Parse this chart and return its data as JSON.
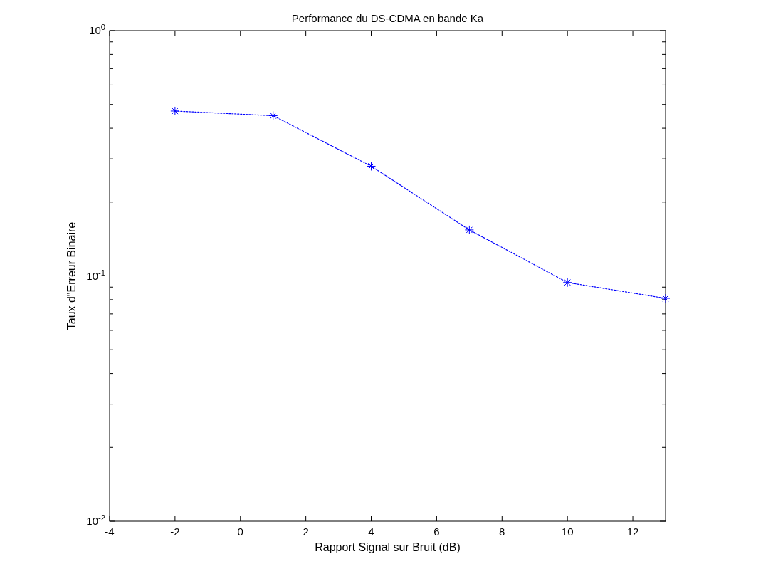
{
  "chart_data": {
    "type": "line",
    "title": "Performance du DS-CDMA en bande Ka",
    "xlabel": "Rapport Signal sur Bruit (dB)",
    "ylabel": "Taux d\"Erreur Binaire",
    "x": [
      -2,
      1,
      4,
      7,
      10,
      13
    ],
    "series": [
      {
        "color": "#0000ff",
        "values": [
          0.47,
          0.45,
          0.28,
          0.154,
          0.094,
          0.081
        ]
      }
    ],
    "xlim": [
      -4,
      13
    ],
    "xticks": [
      -4,
      -2,
      0,
      2,
      4,
      6,
      8,
      10,
      12
    ],
    "ylim": [
      0.01,
      1
    ],
    "yticks": [
      {
        "value": 0.01,
        "label": "10$^{-2}$"
      },
      {
        "value": 0.1,
        "label": "10$^{-1}$"
      },
      {
        "value": 1,
        "label": "10$^{0}$"
      }
    ],
    "log": "y",
    "grid": false,
    "marker": "cross",
    "line_style": "dotted"
  }
}
